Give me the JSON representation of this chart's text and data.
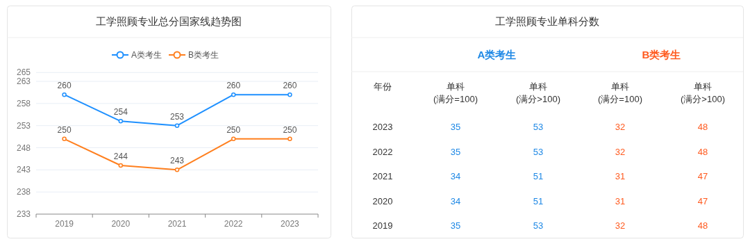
{
  "chart_data": [
    {
      "type": "line",
      "title": "工学照顾专业总分国家线趋势图",
      "categories": [
        "2019",
        "2020",
        "2021",
        "2022",
        "2023"
      ],
      "series": [
        {
          "name": "A类考生",
          "color": "#1e90ff",
          "values": [
            260,
            254,
            253,
            260,
            260
          ]
        },
        {
          "name": "B类考生",
          "color": "#ff7f1e",
          "values": [
            250,
            244,
            243,
            250,
            250
          ]
        }
      ],
      "ylim": [
        233,
        265
      ],
      "yticks": [
        233,
        238,
        243,
        248,
        253,
        258,
        263,
        265
      ],
      "grid": "y",
      "legend": "top",
      "marker": "circle",
      "line_style": "solid",
      "data_labels": true
    },
    {
      "type": "heatmap",
      "title": "工学照顾专业单科分数",
      "categories": [
        "单科\n(满分=100)",
        "单科\n(满分>100)",
        "单科\n(满分=100)",
        "单科\n(满分>100)"
      ],
      "y_categories": [
        "2023",
        "2022",
        "2021",
        "2020",
        "2019"
      ],
      "cells": [
        [
          35,
          53,
          32,
          48
        ],
        [
          35,
          53,
          32,
          48
        ],
        [
          34,
          51,
          31,
          47
        ],
        [
          34,
          51,
          31,
          47
        ],
        [
          35,
          53,
          32,
          48
        ]
      ],
      "colors": [
        "#1e88e5",
        "#1e88e5",
        "#ff5a1f",
        "#ff5a1f"
      ],
      "data_labels": true,
      "annotations": [
        "年份",
        "A类考生",
        "B类考生"
      ]
    }
  ]
}
